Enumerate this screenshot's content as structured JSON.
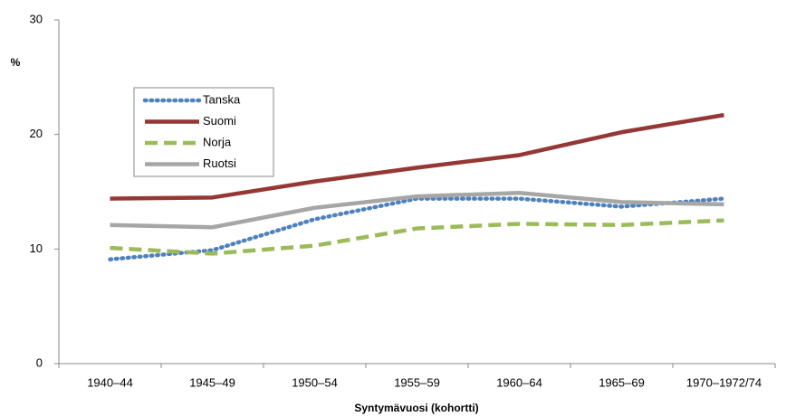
{
  "chart_data": {
    "type": "line",
    "y_label": "%",
    "x_label": "Syntymävuosi (kohortti)",
    "categories": [
      "1940–44",
      "1945–49",
      "1950–54",
      "1955–59",
      "1960–64",
      "1965–69",
      "1970–1972/74"
    ],
    "series": [
      {
        "name": "Tanska",
        "color": "#4f81bd",
        "dash": "dotted",
        "values": [
          9.1,
          9.9,
          12.6,
          14.4,
          14.4,
          13.7,
          14.4
        ]
      },
      {
        "name": "Suomi",
        "color": "#953735",
        "dash": "solid",
        "values": [
          14.4,
          14.5,
          15.9,
          17.1,
          18.2,
          20.2,
          21.7
        ]
      },
      {
        "name": "Norja",
        "color": "#9bbb59",
        "dash": "dashed",
        "values": [
          10.1,
          9.6,
          10.3,
          11.8,
          12.2,
          12.1,
          12.5
        ]
      },
      {
        "name": "Ruotsi",
        "color": "#a6a6a6",
        "dash": "solid",
        "values": [
          12.1,
          11.9,
          13.6,
          14.6,
          14.9,
          14.1,
          13.9
        ]
      }
    ],
    "ylim": [
      0,
      30
    ],
    "yticks": [
      0,
      10,
      20,
      30
    ],
    "grid": false
  }
}
